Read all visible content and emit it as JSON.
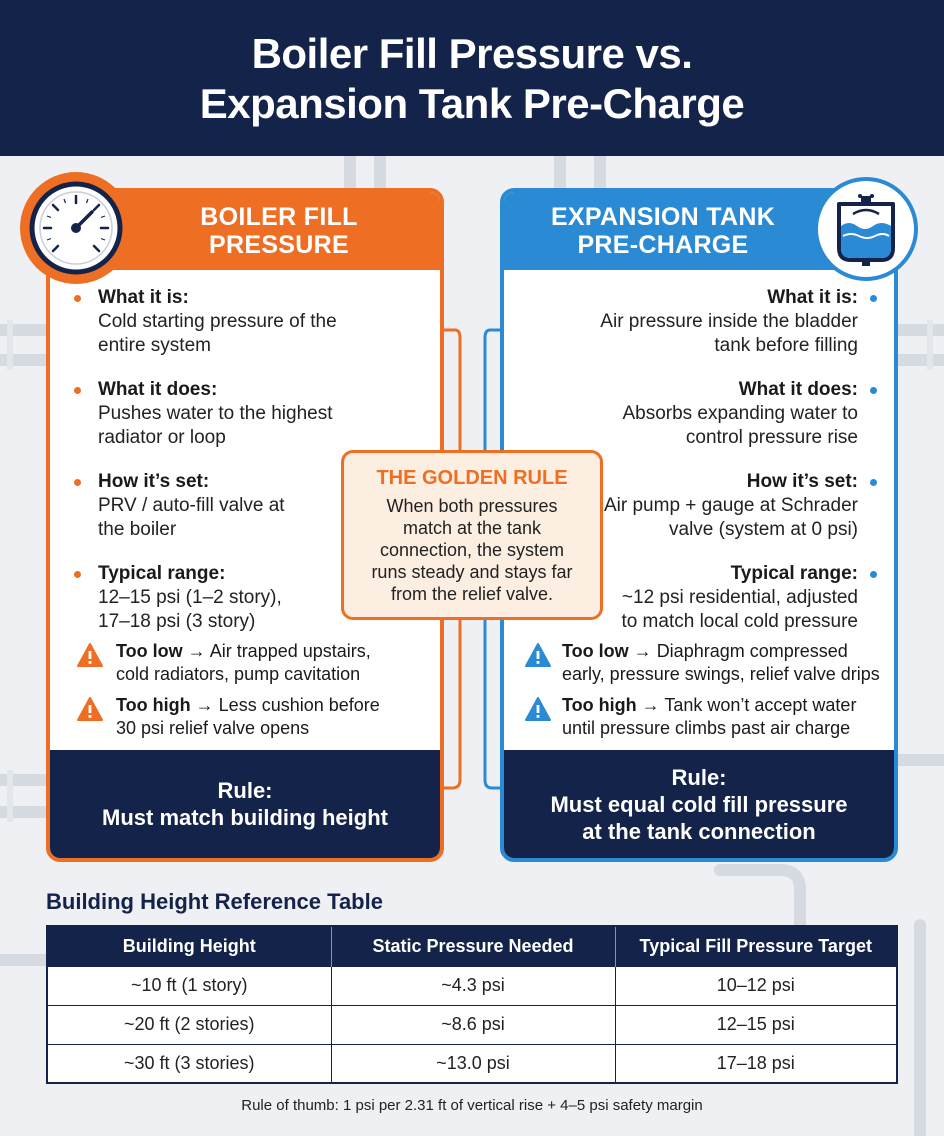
{
  "header": {
    "title_line1": "Boiler Fill Pressure vs.",
    "title_line2": "Expansion Tank Pre-Charge"
  },
  "boiler_card": {
    "title_line1": "BOILER FILL",
    "title_line2": "PRESSURE",
    "icon": "pressure-gauge-icon",
    "items": [
      {
        "title": "What it is:",
        "body": [
          "Cold starting pressure of the",
          "entire system"
        ]
      },
      {
        "title": "What it does:",
        "body": [
          "Pushes water to the highest",
          "radiator or loop"
        ]
      },
      {
        "title": "How it’s set:",
        "body": [
          "PRV / auto-fill valve at",
          "the boiler"
        ]
      },
      {
        "title": "Typical range:",
        "body": [
          "12–15 psi (1–2 story),",
          "17–18 psi (3 story)"
        ]
      }
    ],
    "warnings": [
      {
        "label": "Too low",
        "arrow": "→",
        "text_line1": "Air trapped upstairs,",
        "text_line2": "cold radiators, pump cavitation"
      },
      {
        "label": "Too high",
        "arrow": "→",
        "text_line1": "Less cushion before",
        "text_line2": "30 psi relief valve opens"
      }
    ],
    "rule_line1": "Rule:",
    "rule_line2": "Must match building height",
    "accent": "#ee6f24"
  },
  "tank_card": {
    "title_line1": "EXPANSION TANK",
    "title_line2": "PRE-CHARGE",
    "icon": "expansion-tank-icon",
    "items": [
      {
        "title": "What it is:",
        "body": [
          "Air pressure inside the bladder",
          "tank before filling"
        ]
      },
      {
        "title": "What it does:",
        "body": [
          "Absorbs expanding water to",
          "control pressure rise"
        ]
      },
      {
        "title": "How it’s set:",
        "body": [
          "Air pump + gauge at Schrader",
          "valve (system at 0 psi)"
        ]
      },
      {
        "title": "Typical range:",
        "body": [
          "~12 psi residential, adjusted",
          "to match local cold pressure"
        ]
      }
    ],
    "warnings": [
      {
        "label": "Too low",
        "arrow": "→",
        "text_line1": "Diaphragm compressed",
        "text_line2": "early, pressure swings, relief valve drips"
      },
      {
        "label": "Too high",
        "arrow": "→",
        "text_line1": "Tank won’t accept water",
        "text_line2": "until pressure climbs past air charge"
      }
    ],
    "rule_line1": "Rule:",
    "rule_line2": "Must equal cold fill pressure",
    "rule_line3": "at the tank connection",
    "accent": "#2a8ad4"
  },
  "golden_rule": {
    "title": "THE GOLDEN RULE",
    "body": [
      "When both pressures",
      "match at the tank",
      "connection, the system",
      "runs steady and stays far",
      "from the relief valve."
    ]
  },
  "reference_table": {
    "title": "Building Height Reference Table",
    "headers": [
      "Building Height",
      "Static Pressure Needed",
      "Typical Fill Pressure Target"
    ],
    "rows": [
      [
        "~10 ft (1 story)",
        "~4.3 psi",
        "10–12 psi"
      ],
      [
        "~20 ft (2 stories)",
        "~8.6 psi",
        "12–15 psi"
      ],
      [
        "~30 ft (3 stories)",
        "~13.0 psi",
        "17–18 psi"
      ]
    ]
  },
  "footnote": "Rule of thumb: 1 psi per 2.31 ft of vertical rise + 4–5 psi safety margin",
  "colors": {
    "navy": "#13234a",
    "orange": "#ee6f24",
    "blue": "#2a8ad4",
    "warning_blue": "#2a8ad4"
  }
}
